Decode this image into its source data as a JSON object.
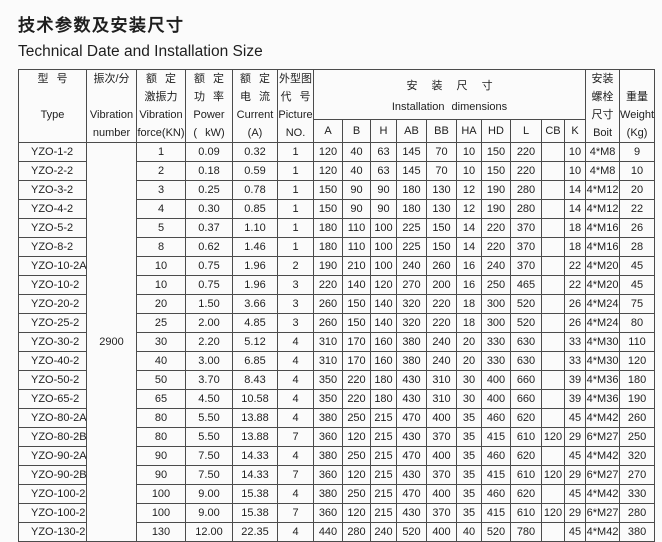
{
  "page": {
    "title_zh": "技术参数及安装尺寸",
    "title_en": "Technical Date and Installation Size"
  },
  "table": {
    "headers": {
      "type": {
        "lines": [
          "型  号",
          "",
          "Type",
          ""
        ]
      },
      "vibration": {
        "lines": [
          "振次/分",
          "",
          "Vibration",
          "number"
        ]
      },
      "force": {
        "lines": [
          "额  定",
          "激振力",
          "Vibration",
          "force(KN)"
        ]
      },
      "power": {
        "lines": [
          "额  定",
          "功  率",
          "Power",
          "( kW)"
        ]
      },
      "current": {
        "lines": [
          "额  定",
          "电  流",
          "Current",
          "(A)"
        ]
      },
      "picture": {
        "lines": [
          "外型图",
          "代 号",
          "Picture",
          "NO."
        ]
      },
      "install": {
        "zh": "安 装 尺 寸",
        "en": "Installation dimensions",
        "dims": [
          "A",
          "B",
          "H",
          "AB",
          "BB",
          "HA",
          "HD",
          "L",
          "CB",
          "K"
        ]
      },
      "bolt": {
        "lines": [
          "安装",
          "螺栓",
          "尺寸",
          "Boit"
        ]
      },
      "weight": {
        "lines": [
          "",
          "重量",
          "Weight",
          "(Kg)"
        ]
      }
    },
    "vibration_number": "2900",
    "rows": [
      {
        "type": "YZO-1-2",
        "force": "1",
        "power": "0.09",
        "current": "0.32",
        "picture": "1",
        "dims": [
          "120",
          "40",
          "63",
          "145",
          "70",
          "10",
          "150",
          "220",
          "",
          "10"
        ],
        "bolt": "4*M8",
        "weight": "9"
      },
      {
        "type": "YZO-2-2",
        "force": "2",
        "power": "0.18",
        "current": "0.59",
        "picture": "1",
        "dims": [
          "120",
          "40",
          "63",
          "145",
          "70",
          "10",
          "150",
          "220",
          "",
          "10"
        ],
        "bolt": "4*M8",
        "weight": "10"
      },
      {
        "type": "YZO-3-2",
        "force": "3",
        "power": "0.25",
        "current": "0.78",
        "picture": "1",
        "dims": [
          "150",
          "90",
          "90",
          "180",
          "130",
          "12",
          "190",
          "280",
          "",
          "14"
        ],
        "bolt": "4*M12",
        "weight": "20"
      },
      {
        "type": "YZO-4-2",
        "force": "4",
        "power": "0.30",
        "current": "0.85",
        "picture": "1",
        "dims": [
          "150",
          "90",
          "90",
          "180",
          "130",
          "12",
          "190",
          "280",
          "",
          "14"
        ],
        "bolt": "4*M12",
        "weight": "22"
      },
      {
        "type": "YZO-5-2",
        "force": "5",
        "power": "0.37",
        "current": "1.10",
        "picture": "1",
        "dims": [
          "180",
          "110",
          "100",
          "225",
          "150",
          "14",
          "220",
          "370",
          "",
          "18"
        ],
        "bolt": "4*M16",
        "weight": "26"
      },
      {
        "type": "YZO-8-2",
        "force": "8",
        "power": "0.62",
        "current": "1.46",
        "picture": "1",
        "dims": [
          "180",
          "110",
          "100",
          "225",
          "150",
          "14",
          "220",
          "370",
          "",
          "18"
        ],
        "bolt": "4*M16",
        "weight": "28"
      },
      {
        "type": "YZO-10-2A",
        "force": "10",
        "power": "0.75",
        "current": "1.96",
        "picture": "2",
        "dims": [
          "190",
          "210",
          "100",
          "240",
          "260",
          "16",
          "240",
          "370",
          "",
          "22"
        ],
        "bolt": "4*M20",
        "weight": "45"
      },
      {
        "type": "YZO-10-2",
        "force": "10",
        "power": "0.75",
        "current": "1.96",
        "picture": "3",
        "dims": [
          "220",
          "140",
          "120",
          "270",
          "200",
          "16",
          "250",
          "465",
          "",
          "22"
        ],
        "bolt": "4*M20",
        "weight": "45"
      },
      {
        "type": "YZO-20-2",
        "force": "20",
        "power": "1.50",
        "current": "3.66",
        "picture": "3",
        "dims": [
          "260",
          "150",
          "140",
          "320",
          "220",
          "18",
          "300",
          "520",
          "",
          "26"
        ],
        "bolt": "4*M24",
        "weight": "75"
      },
      {
        "type": "YZO-25-2",
        "force": "25",
        "power": "2.00",
        "current": "4.85",
        "picture": "3",
        "dims": [
          "260",
          "150",
          "140",
          "320",
          "220",
          "18",
          "300",
          "520",
          "",
          "26"
        ],
        "bolt": "4*M24",
        "weight": "80"
      },
      {
        "type": "YZO-30-2",
        "force": "30",
        "power": "2.20",
        "current": "5.12",
        "picture": "4",
        "dims": [
          "310",
          "170",
          "160",
          "380",
          "240",
          "20",
          "330",
          "630",
          "",
          "33"
        ],
        "bolt": "4*M30",
        "weight": "110"
      },
      {
        "type": "YZO-40-2",
        "force": "40",
        "power": "3.00",
        "current": "6.85",
        "picture": "4",
        "dims": [
          "310",
          "170",
          "160",
          "380",
          "240",
          "20",
          "330",
          "630",
          "",
          "33"
        ],
        "bolt": "4*M30",
        "weight": "120"
      },
      {
        "type": "YZO-50-2",
        "force": "50",
        "power": "3.70",
        "current": "8.43",
        "picture": "4",
        "dims": [
          "350",
          "220",
          "180",
          "430",
          "310",
          "30",
          "400",
          "660",
          "",
          "39"
        ],
        "bolt": "4*M36",
        "weight": "180"
      },
      {
        "type": "YZO-65-2",
        "force": "65",
        "power": "4.50",
        "current": "10.58",
        "picture": "4",
        "dims": [
          "350",
          "220",
          "180",
          "430",
          "310",
          "30",
          "400",
          "660",
          "",
          "39"
        ],
        "bolt": "4*M36",
        "weight": "190"
      },
      {
        "type": "YZO-80-2A",
        "force": "80",
        "power": "5.50",
        "current": "13.88",
        "picture": "4",
        "dims": [
          "380",
          "250",
          "215",
          "470",
          "400",
          "35",
          "460",
          "620",
          "",
          "45"
        ],
        "bolt": "4*M42",
        "weight": "260"
      },
      {
        "type": "YZO-80-2B",
        "force": "80",
        "power": "5.50",
        "current": "13.88",
        "picture": "7",
        "dims": [
          "360",
          "120",
          "215",
          "430",
          "370",
          "35",
          "415",
          "610",
          "120",
          "29"
        ],
        "bolt": "6*M27",
        "weight": "250"
      },
      {
        "type": "YZO-90-2A",
        "force": "90",
        "power": "7.50",
        "current": "14.33",
        "picture": "4",
        "dims": [
          "380",
          "250",
          "215",
          "470",
          "400",
          "35",
          "460",
          "620",
          "",
          "45"
        ],
        "bolt": "4*M42",
        "weight": "320"
      },
      {
        "type": "YZO-90-2B",
        "force": "90",
        "power": "7.50",
        "current": "14.33",
        "picture": "7",
        "dims": [
          "360",
          "120",
          "215",
          "430",
          "370",
          "35",
          "415",
          "610",
          "120",
          "29"
        ],
        "bolt": "6*M27",
        "weight": "270"
      },
      {
        "type": "YZO-100-2A",
        "force": "100",
        "power": "9.00",
        "current": "15.38",
        "picture": "4",
        "dims": [
          "380",
          "250",
          "215",
          "470",
          "400",
          "35",
          "460",
          "620",
          "",
          "45"
        ],
        "bolt": "4*M42",
        "weight": "330"
      },
      {
        "type": "YZO-100-2B",
        "force": "100",
        "power": "9.00",
        "current": "15.38",
        "picture": "7",
        "dims": [
          "360",
          "120",
          "215",
          "430",
          "370",
          "35",
          "415",
          "610",
          "120",
          "29"
        ],
        "bolt": "6*M27",
        "weight": "280"
      },
      {
        "type": "YZO-130-2",
        "force": "130",
        "power": "12.00",
        "current": "22.35",
        "picture": "4",
        "dims": [
          "440",
          "280",
          "240",
          "520",
          "400",
          "40",
          "520",
          "780",
          "",
          "45"
        ],
        "bolt": "4*M42",
        "weight": "380"
      }
    ]
  }
}
